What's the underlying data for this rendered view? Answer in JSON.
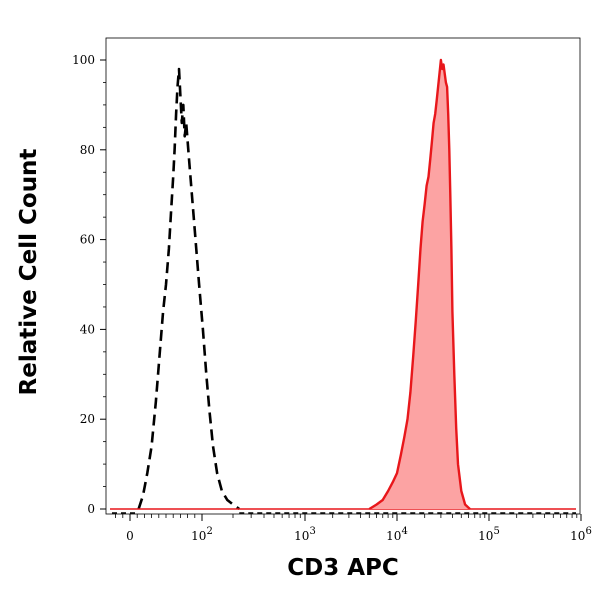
{
  "chart_data": {
    "type": "area",
    "xlabel": "CD3 APC",
    "ylabel": "Relative Cell Count",
    "x_scale": "biexponential",
    "ylim": [
      0,
      100
    ],
    "y_ticks": [
      "0",
      "20",
      "40",
      "60",
      "80",
      "100"
    ],
    "x_ticks": [
      {
        "value": 0,
        "base": "0",
        "exp": ""
      },
      {
        "value": 100,
        "base": "10",
        "exp": "2"
      },
      {
        "value": 1000,
        "base": "10",
        "exp": "3"
      },
      {
        "value": 10000,
        "base": "10",
        "exp": "4"
      },
      {
        "value": 100000,
        "base": "10",
        "exp": "5"
      },
      {
        "value": 1000000,
        "base": "10",
        "exp": "6"
      }
    ],
    "grid": false,
    "legend": "none",
    "series": [
      {
        "style": "dashed",
        "color": "#000000",
        "fill": "none",
        "points": [
          [
            12,
            0
          ],
          [
            18,
            3
          ],
          [
            24,
            8
          ],
          [
            30,
            14
          ],
          [
            36,
            24
          ],
          [
            42,
            36
          ],
          [
            46,
            44
          ],
          [
            50,
            50
          ],
          [
            54,
            58
          ],
          [
            57,
            66
          ],
          [
            60,
            74
          ],
          [
            62,
            80
          ],
          [
            64,
            88
          ],
          [
            66,
            94
          ],
          [
            68,
            98
          ],
          [
            70,
            92
          ],
          [
            72,
            86
          ],
          [
            74,
            90
          ],
          [
            76,
            83
          ],
          [
            78,
            86
          ],
          [
            82,
            78
          ],
          [
            86,
            70
          ],
          [
            90,
            62
          ],
          [
            96,
            50
          ],
          [
            102,
            40
          ],
          [
            110,
            30
          ],
          [
            118,
            22
          ],
          [
            128,
            14
          ],
          [
            140,
            8
          ],
          [
            156,
            4
          ],
          [
            176,
            2
          ],
          [
            200,
            1
          ],
          [
            230,
            0
          ]
        ]
      },
      {
        "style": "solid",
        "color": "#e8171b",
        "fill": "#fca3a3",
        "points": [
          [
            5000,
            0
          ],
          [
            6000,
            1
          ],
          [
            7000,
            2
          ],
          [
            8000,
            4
          ],
          [
            9000,
            6
          ],
          [
            10000,
            8
          ],
          [
            11000,
            12
          ],
          [
            12000,
            16
          ],
          [
            13000,
            20
          ],
          [
            14000,
            26
          ],
          [
            15000,
            34
          ],
          [
            16000,
            42
          ],
          [
            17000,
            50
          ],
          [
            18000,
            58
          ],
          [
            19000,
            64
          ],
          [
            20000,
            68
          ],
          [
            21000,
            72
          ],
          [
            22000,
            74
          ],
          [
            23000,
            78
          ],
          [
            24000,
            82
          ],
          [
            25000,
            86
          ],
          [
            26000,
            88
          ],
          [
            27000,
            91
          ],
          [
            28000,
            94
          ],
          [
            29000,
            97
          ],
          [
            30000,
            100
          ],
          [
            31000,
            98
          ],
          [
            32000,
            99
          ],
          [
            33000,
            97
          ],
          [
            34000,
            95
          ],
          [
            35000,
            94
          ],
          [
            36000,
            88
          ],
          [
            37000,
            80
          ],
          [
            38000,
            70
          ],
          [
            39000,
            58
          ],
          [
            40000,
            44
          ],
          [
            42000,
            30
          ],
          [
            44000,
            18
          ],
          [
            46000,
            10
          ],
          [
            50000,
            4
          ],
          [
            55000,
            1
          ],
          [
            62000,
            0
          ]
        ]
      }
    ]
  }
}
